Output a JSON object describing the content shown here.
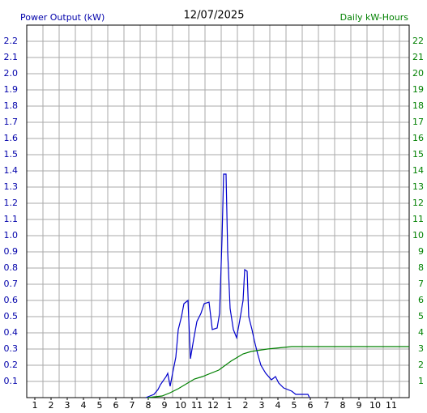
{
  "chart_data": {
    "type": "line",
    "title": "12/07/2025",
    "y_label": "Power Output (kW)",
    "y2_label": "Daily kW-Hours",
    "xlim": [
      0.5,
      24.1
    ],
    "xticks": [
      1,
      2,
      3,
      4,
      5,
      6,
      7,
      8,
      9,
      10,
      11,
      12,
      {
        "value": 13,
        "label": "1"
      },
      {
        "value": 14,
        "label": "2"
      },
      {
        "value": 15,
        "label": "3"
      },
      {
        "value": 16,
        "label": "4"
      },
      {
        "value": 17,
        "label": "5"
      },
      {
        "value": 18,
        "label": "6"
      },
      {
        "value": 19,
        "label": "7"
      },
      {
        "value": 20,
        "label": "8"
      },
      {
        "value": 21,
        "label": "9"
      },
      {
        "value": 22,
        "label": "10"
      },
      {
        "value": 23,
        "label": "11"
      }
    ],
    "ylim": [
      0,
      2.3
    ],
    "yticks": [
      0.1,
      0.2,
      0.3,
      0.4,
      0.5,
      0.6,
      0.7,
      0.8,
      0.9,
      {
        "value": 1,
        "label": "1.0"
      },
      1.1,
      1.2,
      1.3,
      1.4,
      1.5,
      1.6,
      1.7,
      1.8,
      1.9,
      {
        "value": 2,
        "label": "2.0"
      },
      2.1,
      2.2
    ],
    "y2lim": [
      0,
      23
    ],
    "y2ticks": [
      1,
      2,
      3,
      4,
      5,
      6,
      7,
      8,
      9,
      10,
      11,
      12,
      13,
      14,
      15,
      16,
      17,
      18,
      19,
      20,
      21,
      22
    ],
    "grid": true,
    "series": [
      {
        "name": "Power Output (kW)",
        "color": "#0000cc",
        "x": [
          7.85,
          8.35,
          8.6,
          8.75,
          9.1,
          9.2,
          9.35,
          9.5,
          9.7,
          9.85,
          10.05,
          10.2,
          10.45,
          10.6,
          10.8,
          11,
          11.25,
          11.45,
          11.75,
          11.95,
          12.25,
          12.4,
          12.55,
          12.65,
          12.8,
          12.9,
          13.05,
          13.25,
          13.45,
          13.65,
          13.85,
          13.95,
          14.1,
          14.2,
          14.4,
          14.55,
          14.75,
          14.95,
          15.25,
          15.6,
          15.85,
          16.05,
          16.35,
          16.85,
          17.1,
          17.85,
          17.95
        ],
        "values": [
          0,
          0.02,
          0.05,
          0.08,
          0.13,
          0.15,
          0.07,
          0.15,
          0.25,
          0.42,
          0.5,
          0.58,
          0.6,
          0.24,
          0.36,
          0.47,
          0.52,
          0.58,
          0.59,
          0.42,
          0.43,
          0.52,
          0.98,
          1.38,
          1.38,
          0.9,
          0.55,
          0.42,
          0.37,
          0.48,
          0.6,
          0.79,
          0.78,
          0.5,
          0.42,
          0.35,
          0.27,
          0.2,
          0.15,
          0.11,
          0.13,
          0.09,
          0.06,
          0.04,
          0.02,
          0.02,
          0
        ]
      },
      {
        "name": "Daily kW-Hours",
        "color": "#008000",
        "axis": "y2",
        "x": [
          7.95,
          8.85,
          9.35,
          9.85,
          10.85,
          11.35,
          12.35,
          13.1,
          13.85,
          14.35,
          15.35,
          16.85,
          24.1
        ],
        "values": [
          0,
          0.1,
          0.3,
          0.55,
          1.15,
          1.3,
          1.7,
          2.25,
          2.7,
          2.85,
          3.0,
          3.15,
          3.15
        ]
      }
    ]
  }
}
